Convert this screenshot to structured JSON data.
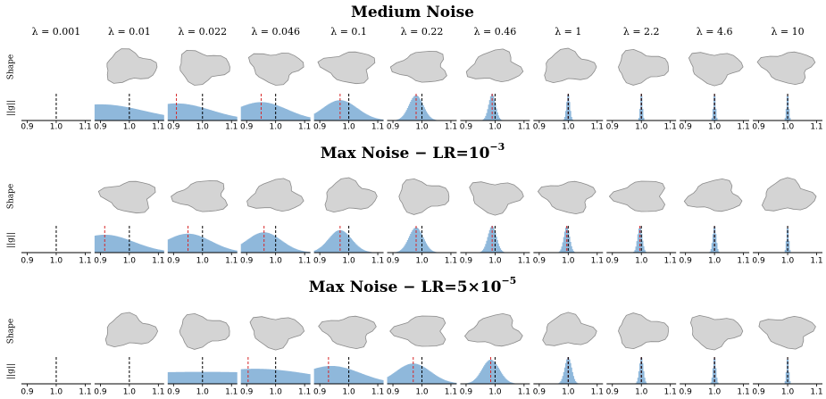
{
  "row_labels": {
    "shape": "Shape",
    "norm": "||g||"
  },
  "lambdas": [
    "λ = 0.001",
    "λ = 0.01",
    "λ = 0.022",
    "λ = 0.046",
    "λ = 0.1",
    "λ = 0.22",
    "λ = 0.46",
    "λ = 1",
    "λ = 2.2",
    "λ = 4.6",
    "λ = 10"
  ],
  "xlim": [
    0.88,
    1.12
  ],
  "xticks": [
    0.9,
    {
      "value": 1,
      "label": "1.0"
    },
    1.1
  ],
  "reference_line": 1,
  "hist_color": "#8fb8db",
  "sections": [
    {
      "title": "Medium Noise",
      "exponent": null,
      "panels": [
        {
          "shape": false,
          "center": null,
          "sigma": null,
          "red": null
        },
        {
          "shape": true,
          "center": 0.9,
          "sigma": 0.15,
          "red": null
        },
        {
          "shape": true,
          "center": 0.91,
          "sigma": 0.12,
          "red": 0.91
        },
        {
          "shape": true,
          "center": 0.95,
          "sigma": 0.09,
          "red": 0.95
        },
        {
          "shape": true,
          "center": 0.97,
          "sigma": 0.06,
          "red": 0.97
        },
        {
          "shape": true,
          "center": 0.98,
          "sigma": 0.025,
          "red": 0.98
        },
        {
          "shape": true,
          "center": 0.99,
          "sigma": 0.012,
          "red": 0.99
        },
        {
          "shape": true,
          "center": 1,
          "sigma": 0.006,
          "red": 1
        },
        {
          "shape": true,
          "center": 1,
          "sigma": 0.004,
          "red": 1
        },
        {
          "shape": true,
          "center": 1,
          "sigma": 0.004,
          "red": 1
        },
        {
          "shape": true,
          "center": 1,
          "sigma": 0.004,
          "red": 1
        }
      ]
    },
    {
      "title": "Max Noise − LR=10",
      "exponent": "−3",
      "panels": [
        {
          "shape": false,
          "center": null,
          "sigma": null,
          "red": null
        },
        {
          "shape": true,
          "center": 0.915,
          "sigma": 0.1,
          "red": 0.915
        },
        {
          "shape": true,
          "center": 0.95,
          "sigma": 0.08,
          "red": 0.95
        },
        {
          "shape": true,
          "center": 0.96,
          "sigma": 0.06,
          "red": 0.96
        },
        {
          "shape": true,
          "center": 0.97,
          "sigma": 0.04,
          "red": 0.97
        },
        {
          "shape": true,
          "center": 0.98,
          "sigma": 0.025,
          "red": 0.98
        },
        {
          "shape": true,
          "center": 0.99,
          "sigma": 0.015,
          "red": 0.99
        },
        {
          "shape": true,
          "center": 0.995,
          "sigma": 0.01,
          "red": 0.995
        },
        {
          "shape": true,
          "center": 0.995,
          "sigma": 0.008,
          "red": 0.995
        },
        {
          "shape": true,
          "center": 1,
          "sigma": 0.006,
          "red": 1
        },
        {
          "shape": true,
          "center": 1,
          "sigma": 0.004,
          "red": 1
        }
      ]
    },
    {
      "title": "Max Noise − LR=5×10",
      "exponent": "−5",
      "panels": [
        {
          "shape": false,
          "center": null,
          "sigma": null,
          "red": null
        },
        {
          "shape": true,
          "center": null,
          "sigma": null,
          "red": null
        },
        {
          "shape": true,
          "center": 1,
          "sigma": 0.5,
          "red": null
        },
        {
          "shape": true,
          "center": 0.93,
          "sigma": 0.2,
          "red": 0.905
        },
        {
          "shape": true,
          "center": 0.94,
          "sigma": 0.1,
          "red": 0.93
        },
        {
          "shape": true,
          "center": 0.97,
          "sigma": 0.06,
          "red": 0.97
        },
        {
          "shape": true,
          "center": 0.985,
          "sigma": 0.03,
          "red": 0.985
        },
        {
          "shape": true,
          "center": 1,
          "sigma": 0.012,
          "red": 1
        },
        {
          "shape": true,
          "center": 1,
          "sigma": 0.007,
          "red": 1
        },
        {
          "shape": true,
          "center": 1,
          "sigma": 0.005,
          "red": 1
        },
        {
          "shape": true,
          "center": 1,
          "sigma": 0.004,
          "red": 1
        }
      ]
    }
  ]
}
